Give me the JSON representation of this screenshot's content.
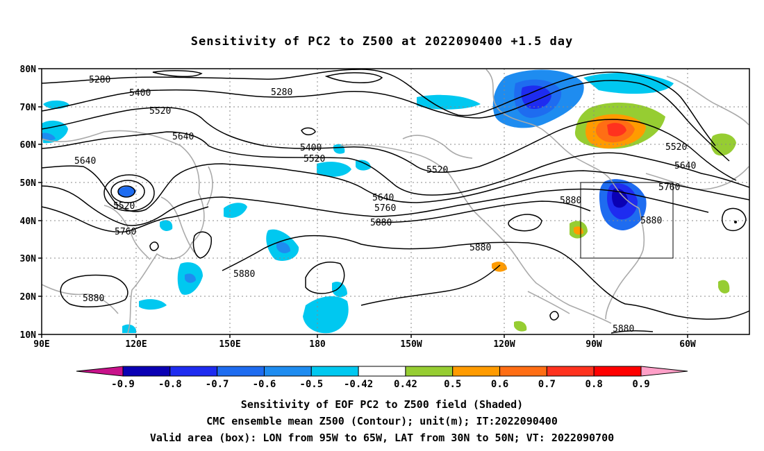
{
  "title": "Sensitivity of PC2 to Z500 at 2022090400 +1.5 day",
  "lat_labels": [
    "80N",
    "70N",
    "60N",
    "50N",
    "40N",
    "30N",
    "20N",
    "10N"
  ],
  "lon_labels": [
    "90E",
    "120E",
    "150E",
    "180",
    "150W",
    "120W",
    "90W",
    "60W"
  ],
  "contour_labels": {
    "l5280a": "5280",
    "l5280b": "5280",
    "l5400a": "5400",
    "l5400b": "5400",
    "l5520a": "5520",
    "l5520b": "5520",
    "l5520c": "5520",
    "l5520d": "5520",
    "l5520e": "5520",
    "l5640a": "5640",
    "l5640b": "5640",
    "l5640c": "5640",
    "l5640d": "5640",
    "l5760a": "5760",
    "l5760b": "5760",
    "l5760c": "5760",
    "l5880a": "5880",
    "l5880b": "5880",
    "l5880c": "5880",
    "l5880d": "5880",
    "l5880e": "5880",
    "l5880f": "5880",
    "l5880g": "5880"
  },
  "colorbar": {
    "labels": [
      "-0.9",
      "-0.8",
      "-0.7",
      "-0.6",
      "-0.5",
      "-0.42",
      "0.42",
      "0.5",
      "0.6",
      "0.7",
      "0.8",
      "0.9"
    ],
    "colors": [
      "#c8128a",
      "#0a00b4",
      "#1e2cf0",
      "#1e6cf0",
      "#1e8cf0",
      "#00c8f0",
      "#ffffff",
      "#96cd32",
      "#ff9b00",
      "#ff6e14",
      "#ff321e",
      "#ff0000",
      "#ffa0c8"
    ]
  },
  "valid_box": {
    "lon_min": "95W",
    "lon_max": "65W",
    "lat_min": "30N",
    "lat_max": "50N"
  },
  "footer": {
    "line1": "Sensitivity of EOF PC2 to Z500 field (Shaded)",
    "line2": "CMC ensemble mean Z500 (Contour); unit(m); IT:2022090400",
    "line3": "Valid area (box): LON from 95W to 65W, LAT from 30N to 50N; VT: 2022090700"
  }
}
